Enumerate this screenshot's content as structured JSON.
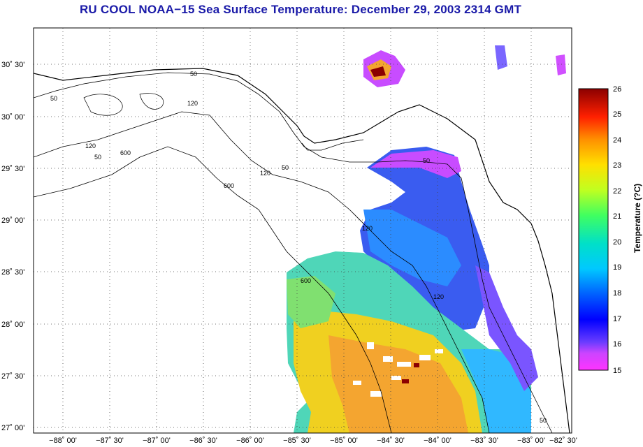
{
  "title": "RU COOL  NOAA−15  Sea Surface Temperature:  December 29, 2003 2314 GMT",
  "map": {
    "lon_labels": [
      "−88˚ 00'",
      "−87˚ 30'",
      "−87˚ 00'",
      "−86˚ 30'",
      "−86˚ 00'",
      "−85˚ 30'",
      "−85˚ 00'",
      "−84˚ 30'",
      "−84˚ 00'",
      "−83˚ 30'",
      "−83˚ 00'",
      "−82˚ 30'"
    ],
    "lon_values": [
      -88.0,
      -87.5,
      -87.0,
      -86.5,
      -86.0,
      -85.5,
      -85.0,
      -84.5,
      -84.0,
      -83.5,
      -83.0,
      -82.5
    ],
    "lat_labels": [
      "30˚ 30'",
      "30˚ 00'",
      "29˚ 30'",
      "29˚ 00'",
      "28˚ 30'",
      "28˚ 00'",
      "27˚ 30'",
      "27˚ 00'"
    ],
    "lat_values": [
      30.5,
      30.0,
      29.5,
      29.0,
      28.5,
      28.0,
      27.5,
      27.0
    ],
    "contour_labels": [
      "50",
      "120",
      "600",
      "50",
      "120",
      "600",
      "50",
      "120",
      "50",
      "120",
      "50",
      "600",
      "120",
      "50"
    ]
  },
  "colorbar": {
    "title": "Temperature (?C)",
    "min": 15,
    "max": 26,
    "tick_labels": [
      "26",
      "25",
      "24",
      "23",
      "22",
      "21",
      "20",
      "19",
      "18",
      "17",
      "16",
      "15"
    ]
  }
}
